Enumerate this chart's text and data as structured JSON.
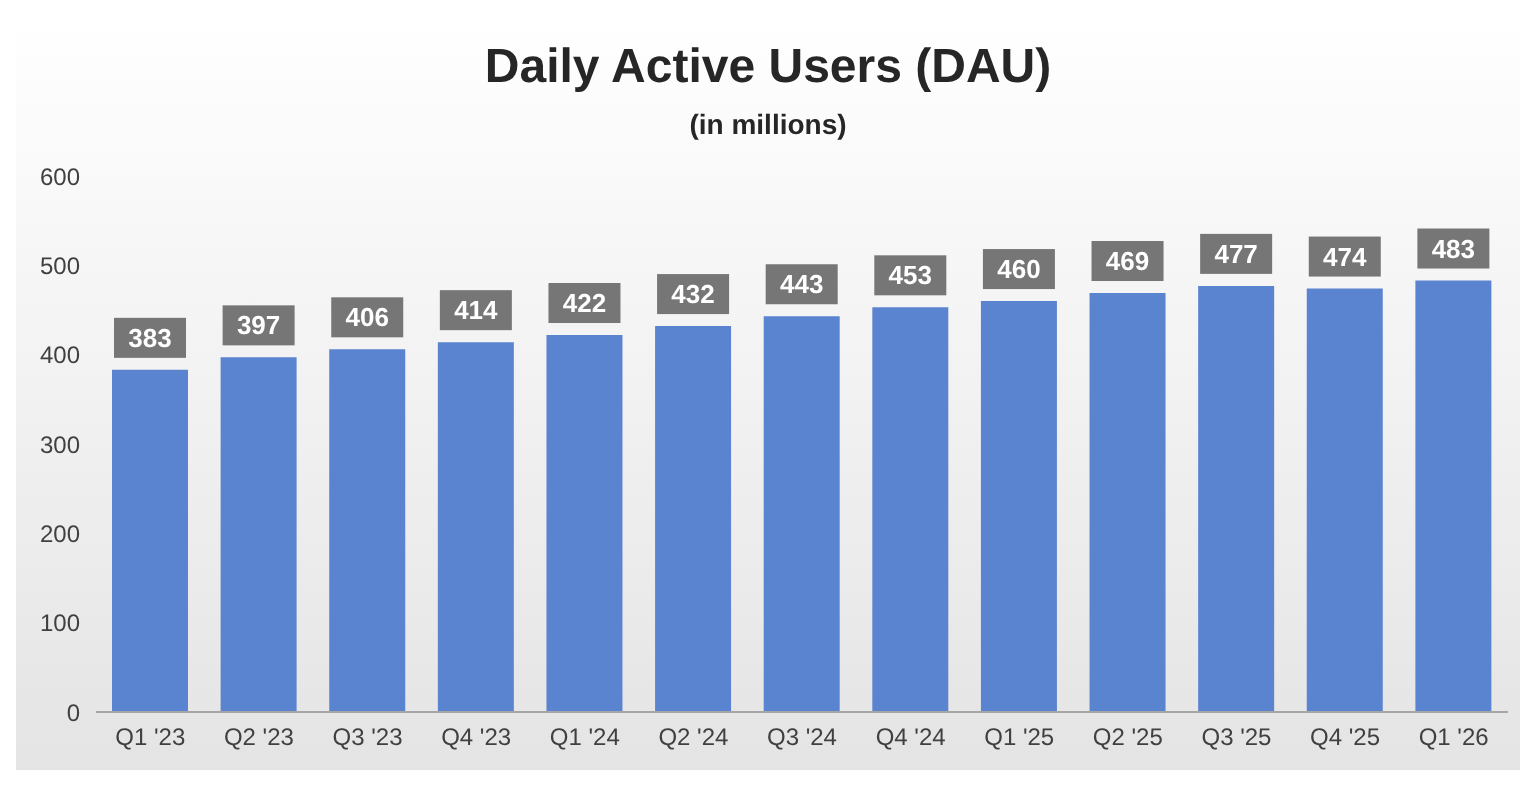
{
  "chart_data": {
    "type": "bar",
    "title": "Daily Active Users (DAU)",
    "subtitle": "(in millions)",
    "categories": [
      "Q1 '23",
      "Q2 '23",
      "Q3 '23",
      "Q4 '23",
      "Q1 '24",
      "Q2 '24",
      "Q3 '24",
      "Q4 '24",
      "Q1 '25",
      "Q2 '25",
      "Q3 '25",
      "Q4 '25",
      "Q1 '26"
    ],
    "values": [
      383,
      397,
      406,
      414,
      422,
      432,
      443,
      453,
      460,
      469,
      477,
      474,
      483
    ],
    "color": "#5b84d0",
    "ylim": [
      0,
      600
    ],
    "yticks": [
      0,
      100,
      200,
      300,
      400,
      500,
      600
    ],
    "grid": false,
    "data_labels": true
  }
}
